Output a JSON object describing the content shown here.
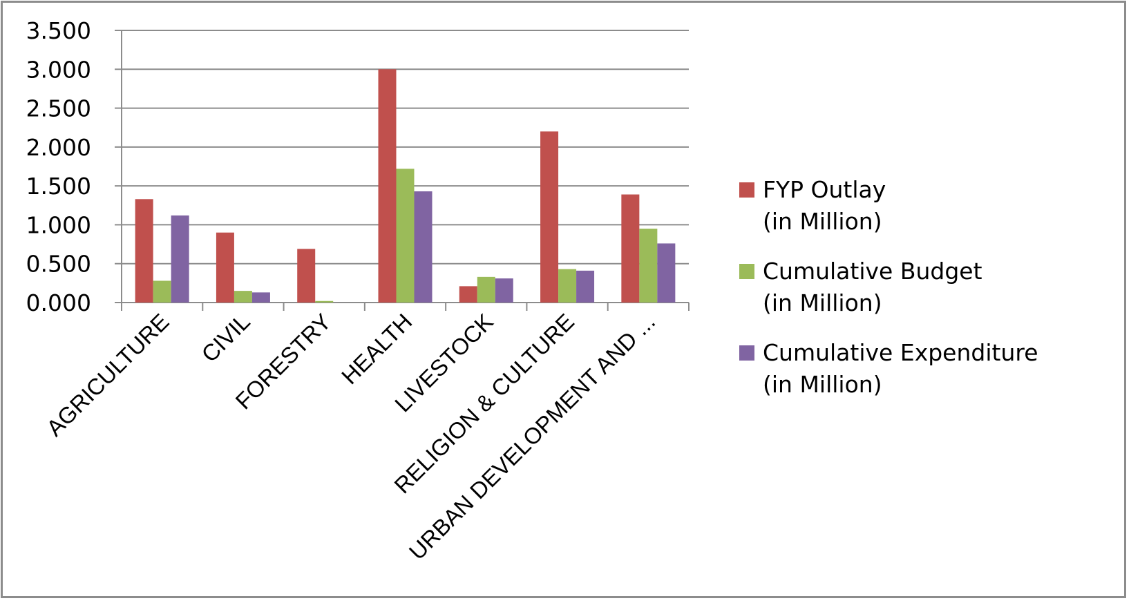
{
  "chart_data": {
    "type": "bar",
    "categories": [
      "AGRICULTURE",
      "CIVIL",
      "FORESTRY",
      "HEALTH",
      "LIVESTOCK",
      "RELIGION & CULTURE",
      "URBAN DEVELOPMENT AND ..."
    ],
    "series": [
      {
        "name": "FYP Outlay (in Million)",
        "name_lines": [
          "FYP Outlay",
          "(in Million)"
        ],
        "color": "#c0504d",
        "values": [
          1.33,
          0.9,
          0.69,
          3.0,
          0.21,
          2.2,
          1.39
        ]
      },
      {
        "name": "Cumulative Budget (in Million)",
        "name_lines": [
          "Cumulative Budget",
          "(in Million)"
        ],
        "color": "#9bbb59",
        "values": [
          0.28,
          0.15,
          0.02,
          1.72,
          0.33,
          0.43,
          0.95
        ]
      },
      {
        "name": "Cumulative Expenditure (in Million)",
        "name_lines": [
          "Cumulative Expenditure",
          "(in Million)"
        ],
        "color": "#8064a2",
        "values": [
          1.12,
          0.13,
          0.0,
          1.43,
          0.31,
          0.41,
          0.76
        ]
      }
    ],
    "y_ticks": [
      "0.000",
      "0.500",
      "1.000",
      "1.500",
      "2.000",
      "2.500",
      "3.000",
      "3.500"
    ],
    "ylim": [
      0,
      3.5
    ],
    "grid": true,
    "legend_position": "right"
  }
}
